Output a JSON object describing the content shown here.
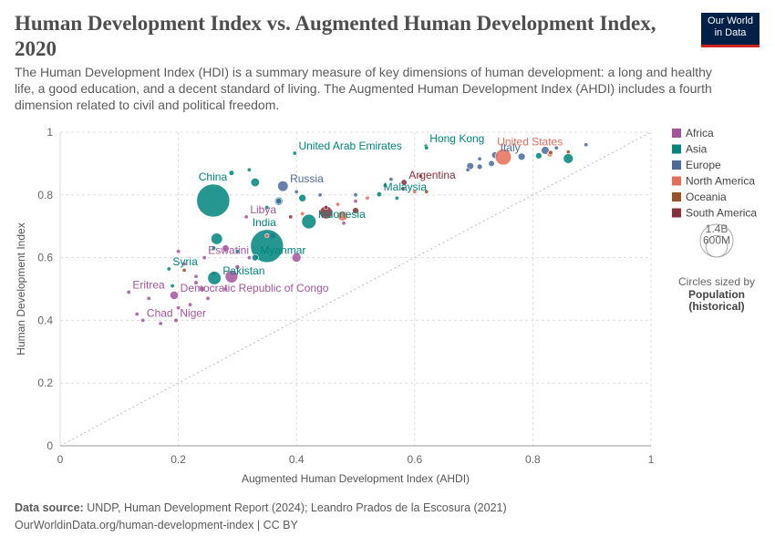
{
  "header": {
    "logo": [
      "Our World",
      "in Data"
    ]
  },
  "chart_data": {
    "type": "scatter",
    "title": "Human Development Index vs. Augmented Human Development Index, 2020",
    "subtitle": "The Human Development Index (HDI) is a summary measure of key dimensions of human development: a long and healthy life, a good education, and a decent standard of living. The Augmented Human Development Index (AHDI) includes a fourth dimension related to civil and political freedom.",
    "xlabel": "Augmented Human Development Index (AHDI)",
    "ylabel": "Human Development Index",
    "xlim": [
      0,
      1
    ],
    "ylim": [
      0,
      1
    ],
    "xticks": [
      0,
      0.2,
      0.4,
      0.6,
      0.8,
      1
    ],
    "yticks": [
      0,
      0.2,
      0.4,
      0.6,
      0.8,
      1
    ],
    "grid": true,
    "legend": "right",
    "size_legend": {
      "title": "Circles sized by",
      "variable": "Population (historical)",
      "sizes": [
        {
          "value": 1400000000,
          "label": "1.4B"
        },
        {
          "value": 600000000,
          "label": "600M"
        }
      ]
    },
    "series": [
      {
        "name": "Africa",
        "color": "#a2559c",
        "labels": [
          "Libya",
          "Eswatini",
          "Eritrea",
          "Chad",
          "Niger",
          "Democratic Republic of Congo",
          null,
          null,
          null,
          null,
          null,
          null,
          null,
          null,
          null,
          null,
          null,
          null,
          null,
          null,
          null,
          null,
          null,
          null,
          null,
          null,
          null
        ],
        "x": [
          0.315,
          0.244,
          0.116,
          0.14,
          0.196,
          0.193,
          0.29,
          0.13,
          0.17,
          0.2,
          0.22,
          0.25,
          0.28,
          0.23,
          0.26,
          0.3,
          0.32,
          0.21,
          0.2,
          0.28,
          0.36,
          0.4,
          0.48,
          0.5,
          0.15,
          0.23,
          0.24
        ],
        "values": [
          0.73,
          0.6,
          0.49,
          0.4,
          0.4,
          0.48,
          0.54,
          0.42,
          0.39,
          0.44,
          0.45,
          0.47,
          0.5,
          0.52,
          0.55,
          0.57,
          0.6,
          0.58,
          0.62,
          0.63,
          0.67,
          0.6,
          0.71,
          0.78,
          0.47,
          0.54,
          0.5
        ],
        "sizes": [
          6800000,
          1200000,
          3500000,
          17000000,
          24000000,
          92000000,
          210000000,
          10000000,
          8000000,
          12000000,
          6000000,
          20000000,
          15000000,
          25000000,
          5000000,
          30000000,
          11000000,
          4000000,
          19000000,
          60000000,
          44000000,
          107000000,
          12000000,
          1300000,
          13000000,
          1000000,
          40000000
        ]
      },
      {
        "name": "Asia",
        "color": "#00847e",
        "labels": [
          "China",
          "India",
          "Indonesia",
          "Pakistan",
          "Myanmar",
          "Syria",
          "United Arab Emirates",
          "Hong Kong",
          "Malaysia",
          null,
          null,
          null,
          null,
          null,
          null,
          null,
          null,
          null,
          null,
          null,
          null,
          null,
          null,
          null
        ],
        "x": [
          0.259,
          0.35,
          0.421,
          0.261,
          0.33,
          0.184,
          0.397,
          0.619,
          0.54,
          0.86,
          0.33,
          0.265,
          0.37,
          0.41,
          0.81,
          0.29,
          0.57,
          0.62,
          0.32,
          0.35,
          0.19,
          0.3,
          0.26,
          0.55
        ],
        "values": [
          0.782,
          0.637,
          0.715,
          0.535,
          0.6,
          0.564,
          0.933,
          0.956,
          0.802,
          0.916,
          0.84,
          0.66,
          0.78,
          0.79,
          0.925,
          0.87,
          0.79,
          0.95,
          0.88,
          0.76,
          0.51,
          0.62,
          0.63,
          0.83
        ],
        "sizes": [
          1410000000,
          1400000000,
          270000000,
          230000000,
          54000000,
          21000000,
          9300000,
          7500000,
          33000000,
          126000000,
          97000000,
          167000000,
          87000000,
          70000000,
          51000000,
          35000000,
          5000000,
          6000000,
          4000000,
          3000000,
          3000000,
          6000000,
          8000000,
          5000000
        ]
      },
      {
        "name": "Europe",
        "color": "#4c6a9c",
        "labels": [
          "Russia",
          "Italy",
          null,
          null,
          null,
          null,
          null,
          null,
          null,
          null,
          null,
          null,
          null,
          null,
          null,
          null
        ],
        "x": [
          0.377,
          0.736,
          0.821,
          0.781,
          0.694,
          0.37,
          0.71,
          0.73,
          0.4,
          0.44,
          0.5,
          0.56,
          0.69,
          0.71,
          0.89,
          0.84
        ],
        "values": [
          0.828,
          0.927,
          0.942,
          0.922,
          0.892,
          0.78,
          0.89,
          0.9,
          0.81,
          0.8,
          0.8,
          0.85,
          0.88,
          0.915,
          0.96,
          0.95
        ],
        "sizes": [
          144000000,
          59000000,
          83000000,
          67000000,
          65000000,
          44000000,
          38000000,
          47000000,
          3000000,
          9000000,
          7000000,
          2000000,
          10000000,
          5000000,
          5000000,
          9000000
        ]
      },
      {
        "name": "North America",
        "color": "#e56e5a",
        "labels": [
          "United States",
          null,
          null,
          null,
          null,
          null,
          null,
          null
        ],
        "x": [
          0.75,
          0.478,
          0.829,
          0.52,
          0.6,
          0.47,
          0.41,
          0.35
        ],
        "values": [
          0.921,
          0.733,
          0.93,
          0.79,
          0.81,
          0.77,
          0.74,
          0.67
        ],
        "sizes": [
          335000000,
          126000000,
          38000000,
          5000000,
          3000000,
          10000000,
          11000000,
          2000000
        ]
      },
      {
        "name": "Oceania",
        "color": "#9a5129",
        "labels": [
          null,
          null,
          null,
          null
        ],
        "x": [
          0.83,
          0.86,
          0.21,
          0.62
        ],
        "values": [
          0.935,
          0.937,
          0.56,
          0.81
        ],
        "sizes": [
          26000000,
          5000000,
          10000000,
          900000
        ]
      },
      {
        "name": "South America",
        "color": "#883039",
        "labels": [
          "Argentina",
          null,
          null,
          null,
          null,
          null,
          null
        ],
        "x": [
          0.582,
          0.45,
          0.5,
          0.45,
          0.58,
          0.61,
          0.39
        ],
        "values": [
          0.84,
          0.744,
          0.75,
          0.76,
          0.82,
          0.86,
          0.73
        ],
        "sizes": [
          45000000,
          210000000,
          51000000,
          11000000,
          19000000,
          3500000,
          20000000
        ]
      }
    ]
  },
  "footer": {
    "source_label": "Data source:",
    "source": "UNDP, Human Development Report (2024); Leandro Prados de la Escosura (2021)",
    "url": "OurWorldinData.org/human-development-index | CC BY"
  }
}
